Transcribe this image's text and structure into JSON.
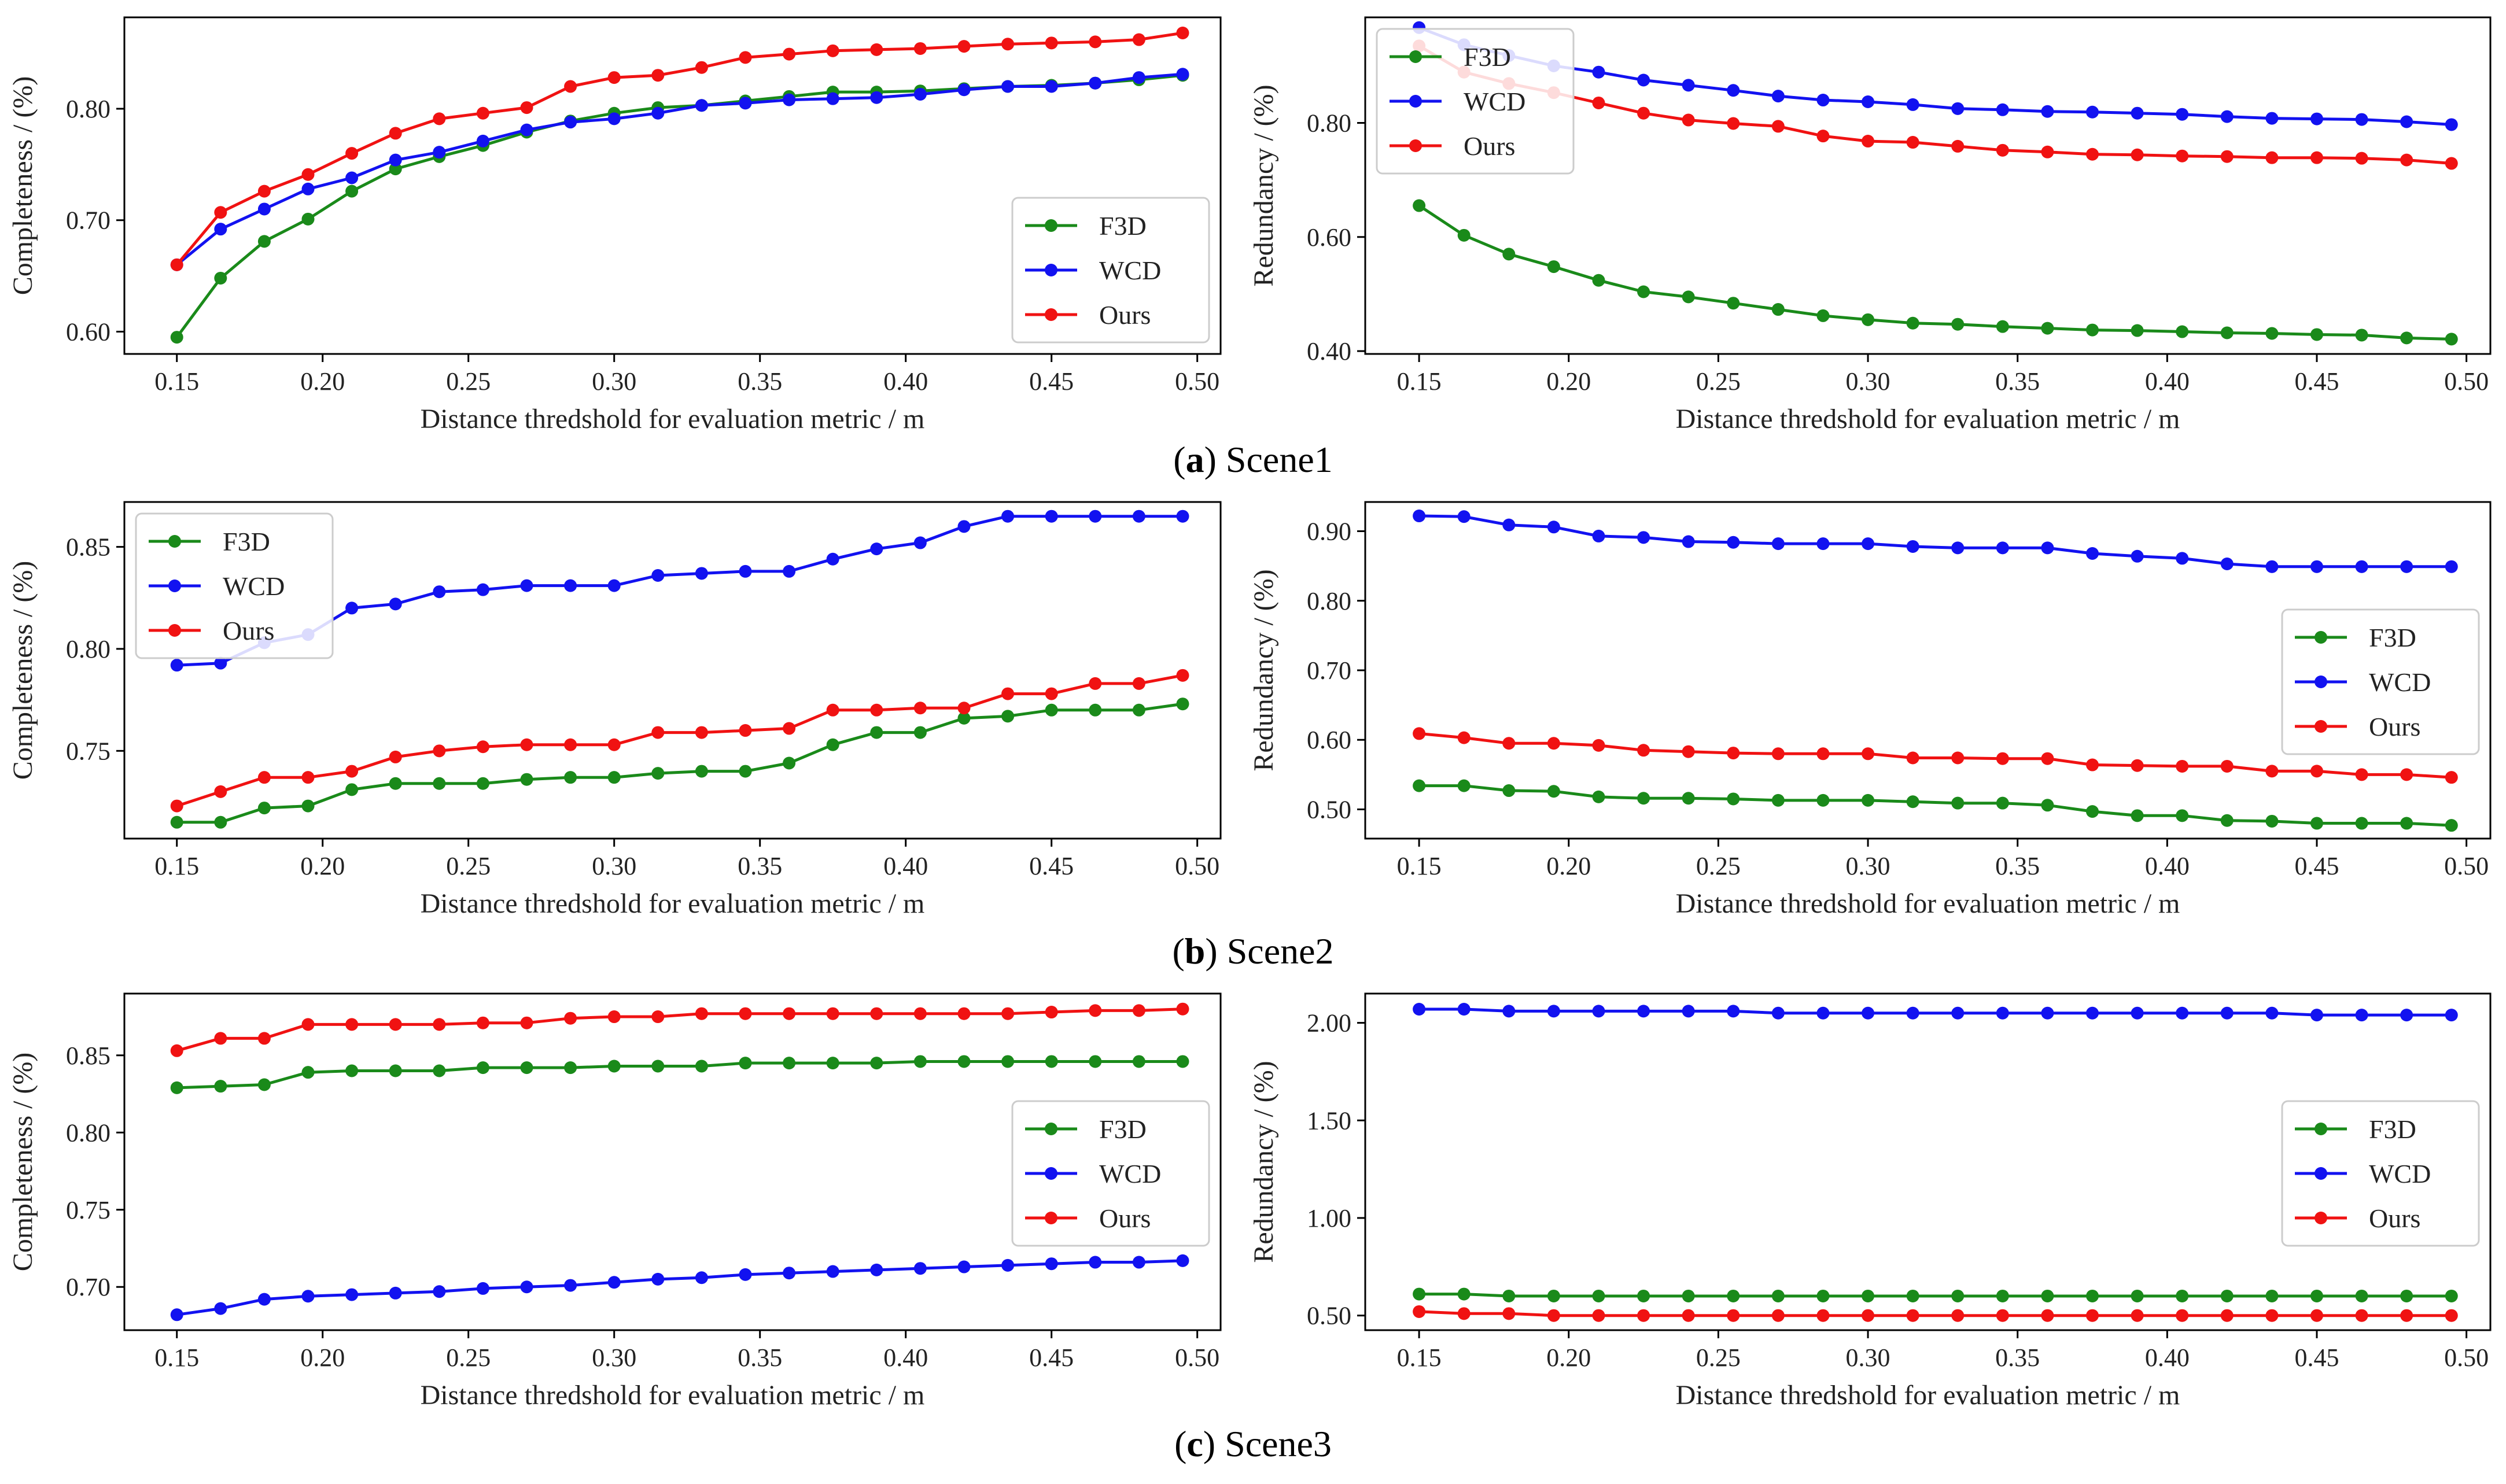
{
  "figure": {
    "captions": [
      {
        "letter": "a",
        "name": "Scene1"
      },
      {
        "letter": "b",
        "name": "Scene2"
      },
      {
        "letter": "c",
        "name": "Scene3"
      }
    ]
  },
  "colors": {
    "F3D": "#1a8a1a",
    "WCD": "#1212f0",
    "Ours": "#f01212"
  },
  "chart_data": [
    {
      "id": "scene1-completeness",
      "type": "line",
      "xlabel": "Distance thredshold for evaluation metric / m",
      "ylabel": "Completeness / (%)",
      "xlim": [
        0.132,
        0.508
      ],
      "xticks": [
        0.15,
        0.2,
        0.25,
        0.3,
        0.35,
        0.4,
        0.45,
        0.5
      ],
      "xtick_labels": [
        "0.15",
        "0.20",
        "0.25",
        "0.30",
        "0.35",
        "0.40",
        "0.45",
        "0.50"
      ],
      "ylim": [
        0.58,
        0.882
      ],
      "yticks": [
        0.6,
        0.7,
        0.8
      ],
      "ytick_labels": [
        "0.60",
        "0.70",
        "0.80"
      ],
      "legend_position": "lower-right",
      "x": [
        0.15,
        0.165,
        0.18,
        0.195,
        0.21,
        0.225,
        0.24,
        0.255,
        0.27,
        0.285,
        0.3,
        0.315,
        0.33,
        0.345,
        0.36,
        0.375,
        0.39,
        0.405,
        0.42,
        0.435,
        0.45,
        0.465,
        0.48,
        0.495
      ],
      "series": [
        {
          "name": "F3D",
          "values": [
            0.595,
            0.648,
            0.681,
            0.701,
            0.726,
            0.746,
            0.757,
            0.767,
            0.779,
            0.789,
            0.796,
            0.801,
            0.803,
            0.807,
            0.811,
            0.815,
            0.815,
            0.816,
            0.818,
            0.82,
            0.821,
            0.823,
            0.826,
            0.83
          ]
        },
        {
          "name": "WCD",
          "values": [
            0.66,
            0.692,
            0.71,
            0.728,
            0.738,
            0.754,
            0.761,
            0.771,
            0.781,
            0.788,
            0.791,
            0.796,
            0.803,
            0.805,
            0.808,
            0.809,
            0.81,
            0.813,
            0.817,
            0.82,
            0.82,
            0.823,
            0.828,
            0.831
          ]
        },
        {
          "name": "Ours",
          "values": [
            0.66,
            0.707,
            0.726,
            0.741,
            0.76,
            0.778,
            0.791,
            0.796,
            0.801,
            0.82,
            0.828,
            0.83,
            0.837,
            0.846,
            0.849,
            0.852,
            0.853,
            0.854,
            0.856,
            0.858,
            0.859,
            0.86,
            0.862,
            0.868
          ]
        }
      ]
    },
    {
      "id": "scene1-redundancy",
      "type": "line",
      "xlabel": "Distance thredshold for evaluation metric / m",
      "ylabel": "Redundancy / (%)",
      "xlim": [
        0.132,
        0.508
      ],
      "xticks": [
        0.15,
        0.2,
        0.25,
        0.3,
        0.35,
        0.4,
        0.45,
        0.5
      ],
      "xtick_labels": [
        "0.15",
        "0.20",
        "0.25",
        "0.30",
        "0.35",
        "0.40",
        "0.45",
        "0.50"
      ],
      "ylim": [
        0.395,
        0.985
      ],
      "yticks": [
        0.4,
        0.6,
        0.8
      ],
      "ytick_labels": [
        "0.40",
        "0.60",
        "0.80"
      ],
      "legend_position": "upper-left",
      "x": [
        0.15,
        0.165,
        0.18,
        0.195,
        0.21,
        0.225,
        0.24,
        0.255,
        0.27,
        0.285,
        0.3,
        0.315,
        0.33,
        0.345,
        0.36,
        0.375,
        0.39,
        0.405,
        0.42,
        0.435,
        0.45,
        0.465,
        0.48,
        0.495
      ],
      "series": [
        {
          "name": "F3D",
          "values": [
            0.655,
            0.603,
            0.57,
            0.548,
            0.524,
            0.504,
            0.495,
            0.484,
            0.473,
            0.462,
            0.455,
            0.449,
            0.447,
            0.443,
            0.44,
            0.437,
            0.436,
            0.434,
            0.432,
            0.431,
            0.429,
            0.428,
            0.423,
            0.421
          ]
        },
        {
          "name": "WCD",
          "values": [
            0.967,
            0.937,
            0.918,
            0.9,
            0.889,
            0.875,
            0.866,
            0.857,
            0.847,
            0.84,
            0.837,
            0.832,
            0.825,
            0.823,
            0.82,
            0.819,
            0.817,
            0.815,
            0.811,
            0.808,
            0.807,
            0.806,
            0.802,
            0.797
          ]
        },
        {
          "name": "Ours",
          "values": [
            0.935,
            0.889,
            0.869,
            0.853,
            0.835,
            0.817,
            0.805,
            0.799,
            0.794,
            0.777,
            0.768,
            0.766,
            0.759,
            0.752,
            0.749,
            0.745,
            0.744,
            0.742,
            0.741,
            0.739,
            0.739,
            0.738,
            0.735,
            0.729
          ]
        }
      ]
    },
    {
      "id": "scene2-completeness",
      "type": "line",
      "xlabel": "Distance thredshold for evaluation metric / m",
      "ylabel": "Completeness / (%)",
      "xlim": [
        0.132,
        0.508
      ],
      "xticks": [
        0.15,
        0.2,
        0.25,
        0.3,
        0.35,
        0.4,
        0.45,
        0.5
      ],
      "xtick_labels": [
        "0.15",
        "0.20",
        "0.25",
        "0.30",
        "0.35",
        "0.40",
        "0.45",
        "0.50"
      ],
      "ylim": [
        0.707,
        0.872
      ],
      "yticks": [
        0.75,
        0.8,
        0.85
      ],
      "ytick_labels": [
        "0.75",
        "0.80",
        "0.85"
      ],
      "legend_position": "upper-left",
      "x": [
        0.15,
        0.165,
        0.18,
        0.195,
        0.21,
        0.225,
        0.24,
        0.255,
        0.27,
        0.285,
        0.3,
        0.315,
        0.33,
        0.345,
        0.36,
        0.375,
        0.39,
        0.405,
        0.42,
        0.435,
        0.45,
        0.465,
        0.48,
        0.495
      ],
      "series": [
        {
          "name": "F3D",
          "values": [
            0.715,
            0.715,
            0.722,
            0.723,
            0.731,
            0.734,
            0.734,
            0.734,
            0.736,
            0.737,
            0.737,
            0.739,
            0.74,
            0.74,
            0.744,
            0.753,
            0.759,
            0.759,
            0.766,
            0.767,
            0.77,
            0.77,
            0.77,
            0.773
          ]
        },
        {
          "name": "WCD",
          "values": [
            0.792,
            0.793,
            0.803,
            0.807,
            0.82,
            0.822,
            0.828,
            0.829,
            0.831,
            0.831,
            0.831,
            0.836,
            0.837,
            0.838,
            0.838,
            0.844,
            0.849,
            0.852,
            0.86,
            0.865,
            0.865,
            0.865,
            0.865,
            0.865
          ]
        },
        {
          "name": "Ours",
          "values": [
            0.723,
            0.73,
            0.737,
            0.737,
            0.74,
            0.747,
            0.75,
            0.752,
            0.753,
            0.753,
            0.753,
            0.759,
            0.759,
            0.76,
            0.761,
            0.77,
            0.77,
            0.771,
            0.771,
            0.778,
            0.778,
            0.783,
            0.783,
            0.787
          ]
        }
      ]
    },
    {
      "id": "scene2-redundancy",
      "type": "line",
      "xlabel": "Distance thredshold for evaluation metric / m",
      "ylabel": "Redundancy / (%)",
      "xlim": [
        0.132,
        0.508
      ],
      "xticks": [
        0.15,
        0.2,
        0.25,
        0.3,
        0.35,
        0.4,
        0.45,
        0.5
      ],
      "xtick_labels": [
        "0.15",
        "0.20",
        "0.25",
        "0.30",
        "0.35",
        "0.40",
        "0.45",
        "0.50"
      ],
      "ylim": [
        0.458,
        0.942
      ],
      "yticks": [
        0.5,
        0.6,
        0.7,
        0.8,
        0.9
      ],
      "ytick_labels": [
        "0.50",
        "0.60",
        "0.70",
        "0.80",
        "0.90"
      ],
      "legend_position": "center-right",
      "x": [
        0.15,
        0.165,
        0.18,
        0.195,
        0.21,
        0.225,
        0.24,
        0.255,
        0.27,
        0.285,
        0.3,
        0.315,
        0.33,
        0.345,
        0.36,
        0.375,
        0.39,
        0.405,
        0.42,
        0.435,
        0.45,
        0.465,
        0.48,
        0.495
      ],
      "series": [
        {
          "name": "F3D",
          "values": [
            0.534,
            0.534,
            0.527,
            0.526,
            0.518,
            0.516,
            0.516,
            0.515,
            0.513,
            0.513,
            0.513,
            0.511,
            0.509,
            0.509,
            0.506,
            0.497,
            0.491,
            0.491,
            0.484,
            0.483,
            0.48,
            0.48,
            0.48,
            0.477
          ]
        },
        {
          "name": "WCD",
          "values": [
            0.922,
            0.921,
            0.909,
            0.906,
            0.893,
            0.891,
            0.885,
            0.884,
            0.882,
            0.882,
            0.882,
            0.878,
            0.876,
            0.876,
            0.876,
            0.868,
            0.864,
            0.861,
            0.853,
            0.849,
            0.849,
            0.849,
            0.849,
            0.849
          ]
        },
        {
          "name": "Ours",
          "values": [
            0.609,
            0.603,
            0.595,
            0.595,
            0.592,
            0.585,
            0.583,
            0.581,
            0.58,
            0.58,
            0.58,
            0.574,
            0.574,
            0.573,
            0.573,
            0.564,
            0.563,
            0.562,
            0.562,
            0.555,
            0.555,
            0.55,
            0.55,
            0.546
          ]
        }
      ]
    },
    {
      "id": "scene3-completeness",
      "type": "line",
      "xlabel": "Distance thredshold for evaluation metric / m",
      "ylabel": "Completeness / (%)",
      "xlim": [
        0.132,
        0.508
      ],
      "xticks": [
        0.15,
        0.2,
        0.25,
        0.3,
        0.35,
        0.4,
        0.45,
        0.5
      ],
      "xtick_labels": [
        "0.15",
        "0.20",
        "0.25",
        "0.30",
        "0.35",
        "0.40",
        "0.45",
        "0.50"
      ],
      "ylim": [
        0.672,
        0.89
      ],
      "yticks": [
        0.7,
        0.75,
        0.8,
        0.85
      ],
      "ytick_labels": [
        "0.70",
        "0.75",
        "0.80",
        "0.85"
      ],
      "legend_position": "center-right",
      "x": [
        0.15,
        0.165,
        0.18,
        0.195,
        0.21,
        0.225,
        0.24,
        0.255,
        0.27,
        0.285,
        0.3,
        0.315,
        0.33,
        0.345,
        0.36,
        0.375,
        0.39,
        0.405,
        0.42,
        0.435,
        0.45,
        0.465,
        0.48,
        0.495
      ],
      "series": [
        {
          "name": "F3D",
          "values": [
            0.829,
            0.83,
            0.831,
            0.839,
            0.84,
            0.84,
            0.84,
            0.842,
            0.842,
            0.842,
            0.843,
            0.843,
            0.843,
            0.845,
            0.845,
            0.845,
            0.845,
            0.846,
            0.846,
            0.846,
            0.846,
            0.846,
            0.846,
            0.846
          ]
        },
        {
          "name": "WCD",
          "values": [
            0.682,
            0.686,
            0.692,
            0.694,
            0.695,
            0.696,
            0.697,
            0.699,
            0.7,
            0.701,
            0.703,
            0.705,
            0.706,
            0.708,
            0.709,
            0.71,
            0.711,
            0.712,
            0.713,
            0.714,
            0.715,
            0.716,
            0.716,
            0.717
          ]
        },
        {
          "name": "Ours",
          "values": [
            0.853,
            0.861,
            0.861,
            0.87,
            0.87,
            0.87,
            0.87,
            0.871,
            0.871,
            0.874,
            0.875,
            0.875,
            0.877,
            0.877,
            0.877,
            0.877,
            0.877,
            0.877,
            0.877,
            0.877,
            0.878,
            0.879,
            0.879,
            0.88
          ]
        }
      ]
    },
    {
      "id": "scene3-redundancy",
      "type": "line",
      "xlabel": "Distance thredshold for evaluation metric / m",
      "ylabel": "Redundancy / (%)",
      "xlim": [
        0.132,
        0.508
      ],
      "xticks": [
        0.15,
        0.2,
        0.25,
        0.3,
        0.35,
        0.4,
        0.45,
        0.5
      ],
      "xtick_labels": [
        "0.15",
        "0.20",
        "0.25",
        "0.30",
        "0.35",
        "0.40",
        "0.45",
        "0.50"
      ],
      "ylim": [
        0.425,
        2.15
      ],
      "yticks": [
        0.5,
        1.0,
        1.5,
        2.0
      ],
      "ytick_labels": [
        "0.50",
        "1.00",
        "1.50",
        "2.00"
      ],
      "legend_position": "center-right",
      "x": [
        0.15,
        0.165,
        0.18,
        0.195,
        0.21,
        0.225,
        0.24,
        0.255,
        0.27,
        0.285,
        0.3,
        0.315,
        0.33,
        0.345,
        0.36,
        0.375,
        0.39,
        0.405,
        0.42,
        0.435,
        0.45,
        0.465,
        0.48,
        0.495
      ],
      "series": [
        {
          "name": "F3D",
          "values": [
            0.61,
            0.61,
            0.6,
            0.6,
            0.6,
            0.6,
            0.6,
            0.6,
            0.6,
            0.6,
            0.6,
            0.6,
            0.6,
            0.6,
            0.6,
            0.6,
            0.6,
            0.6,
            0.6,
            0.6,
            0.6,
            0.6,
            0.6,
            0.6
          ]
        },
        {
          "name": "WCD",
          "values": [
            2.07,
            2.07,
            2.06,
            2.06,
            2.06,
            2.06,
            2.06,
            2.06,
            2.05,
            2.05,
            2.05,
            2.05,
            2.05,
            2.05,
            2.05,
            2.05,
            2.05,
            2.05,
            2.05,
            2.05,
            2.04,
            2.04,
            2.04,
            2.04
          ]
        },
        {
          "name": "Ours",
          "values": [
            0.52,
            0.51,
            0.51,
            0.5,
            0.5,
            0.5,
            0.5,
            0.5,
            0.5,
            0.5,
            0.5,
            0.5,
            0.5,
            0.5,
            0.5,
            0.5,
            0.5,
            0.5,
            0.5,
            0.5,
            0.5,
            0.5,
            0.5,
            0.5
          ]
        }
      ]
    }
  ]
}
